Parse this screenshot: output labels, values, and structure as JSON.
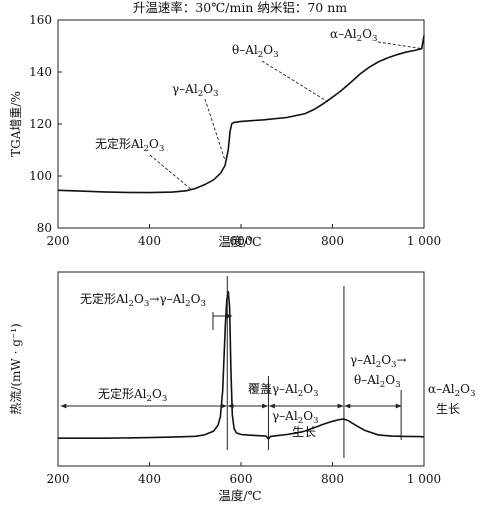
{
  "chart_data": [
    {
      "type": "line",
      "title": "升温速率：30℃/min  纳米铝：70 nm",
      "xlabel": "温度/℃",
      "ylabel": "TGA增重/%",
      "xlim": [
        200,
        1000
      ],
      "ylim": [
        80,
        160
      ],
      "xticks": [
        200,
        400,
        600,
        800,
        1000
      ],
      "xtick_labels": [
        "200",
        "400",
        "600",
        "800",
        "1 000"
      ],
      "yticks": [
        80,
        100,
        120,
        140,
        160
      ],
      "series": [
        {
          "x": [
            200,
            250,
            300,
            350,
            400,
            450,
            480,
            500,
            520,
            540,
            555,
            565,
            572,
            576,
            580,
            585,
            600,
            650,
            700,
            740,
            760,
            780,
            800,
            820,
            840,
            860,
            880,
            900,
            920,
            940,
            960,
            980,
            995,
            1000
          ],
          "y": [
            94.5,
            94.2,
            93.9,
            93.7,
            93.6,
            93.8,
            94.3,
            95.2,
            96.6,
            98.5,
            101,
            104,
            110,
            117,
            120.2,
            120.6,
            121,
            121.6,
            122.5,
            124,
            125.6,
            127.8,
            130.3,
            133,
            136,
            139.2,
            141.8,
            143.9,
            145.4,
            146.6,
            147.6,
            148.3,
            149,
            154
          ]
        }
      ],
      "annotations": [
        {
          "label_parts": [
            "无定形Al",
            "2",
            "O",
            "3"
          ],
          "x": 490,
          "y": 95
        },
        {
          "label_parts": [
            "γ–Al",
            "2",
            "O",
            "3"
          ],
          "x": 565,
          "y": 106
        },
        {
          "label_parts": [
            "θ–Al",
            "2",
            "O",
            "3"
          ],
          "x": 790,
          "y": 128.5
        },
        {
          "label_parts": [
            "α–Al",
            "2",
            "O",
            "3"
          ],
          "x": 995,
          "y": 149
        }
      ]
    },
    {
      "type": "line",
      "xlabel": "温度/℃",
      "ylabel": "热流/(mW · g⁻¹)",
      "xlim": [
        200,
        1000
      ],
      "xticks": [
        200,
        400,
        600,
        800,
        1000
      ],
      "xtick_labels": [
        "200",
        "400",
        "600",
        "800",
        "1 000"
      ],
      "series": [
        {
          "x": [
            200,
            300,
            400,
            450,
            500,
            520,
            540,
            550,
            555,
            560,
            563,
            566,
            569,
            572,
            575,
            578,
            581,
            585,
            590,
            600,
            620,
            640,
            655,
            660,
            665,
            680,
            700,
            720,
            740,
            760,
            780,
            800,
            815,
            825,
            835,
            850,
            870,
            900,
            930,
            960,
            990,
            1000
          ],
          "y": [
            0.5,
            0.5,
            0.8,
            1.1,
            1.6,
            2.4,
            4.5,
            8,
            13,
            28,
            48,
            66,
            80,
            85,
            76,
            40,
            14,
            6,
            3.5,
            2.6,
            2.2,
            1.9,
            1.7,
            0.0,
            1.5,
            2.0,
            2.6,
            3.4,
            4.6,
            6.5,
            8.5,
            10.2,
            11.2,
            11.5,
            10.5,
            8,
            5,
            2.4,
            1.7,
            1.5,
            1.4,
            1.3
          ]
        }
      ],
      "boundaries": [
        570,
        660,
        825,
        950
      ],
      "annotations": [
        {
          "label_parts": [
            "无定形Al",
            "2",
            "O",
            "3",
            "→γ–Al",
            "2",
            "O",
            "3"
          ]
        },
        {
          "label_parts": [
            "无定形Al",
            "2",
            "O",
            "3"
          ]
        },
        {
          "label_parts": [
            "覆盖γ–Al",
            "2",
            "O",
            "3"
          ]
        },
        {
          "label_parts": [
            "γ–Al",
            "2",
            "O",
            "3"
          ],
          "line2": "生长"
        },
        {
          "label_parts": [
            "γ–Al",
            "2",
            "O",
            "3",
            "→"
          ],
          "line2_parts": [
            "θ–Al",
            "2",
            "O",
            "3"
          ]
        },
        {
          "label_parts": [
            "α–Al",
            "2",
            "O",
            "3"
          ],
          "line2": "生长"
        }
      ]
    }
  ]
}
